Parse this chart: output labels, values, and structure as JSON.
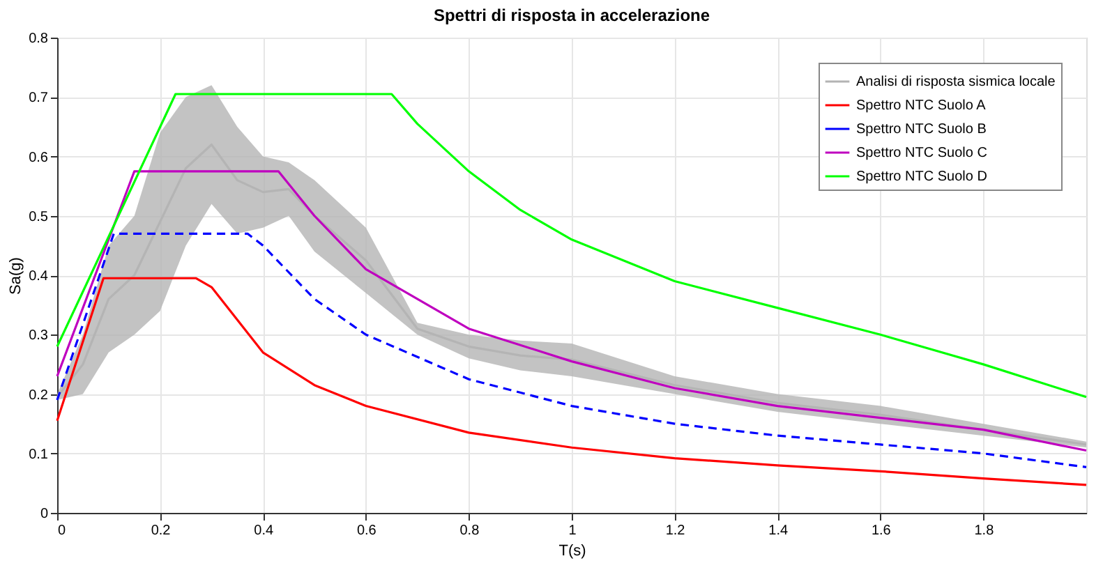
{
  "chart_data": {
    "type": "line",
    "title": "Spettri di risposta in accelerazione",
    "xlabel": "T(s)",
    "ylabel": "Sa(g)",
    "xlim": [
      0,
      2
    ],
    "xticks": [
      0,
      0.2,
      0.4,
      0.6,
      0.8,
      1,
      1.2,
      1.4,
      1.6,
      1.8
    ],
    "ylim": [
      0,
      0.8
    ],
    "yticks": [
      0,
      0.1,
      0.2,
      0.3,
      0.4,
      0.5,
      0.6,
      0.7,
      0.8
    ],
    "grid": true,
    "legend": "top right",
    "marker": "none",
    "series": [
      {
        "name": "Analisi di risposta sismica locale",
        "color": "#b4b4b4",
        "line_style": "solid",
        "x": [
          0,
          0.05,
          0.1,
          0.15,
          0.2,
          0.25,
          0.3,
          0.35,
          0.4,
          0.45,
          0.5,
          0.6,
          0.7,
          0.8,
          0.9,
          1.0,
          1.2,
          1.4,
          1.6,
          1.8,
          2.0
        ],
        "values": [
          0.195,
          0.25,
          0.36,
          0.4,
          0.49,
          0.58,
          0.62,
          0.56,
          0.54,
          0.545,
          0.5,
          0.425,
          0.31,
          0.28,
          0.265,
          0.258,
          0.215,
          0.185,
          0.165,
          0.14,
          0.115
        ],
        "lower": [
          0.19,
          0.2,
          0.27,
          0.3,
          0.34,
          0.45,
          0.52,
          0.47,
          0.48,
          0.5,
          0.44,
          0.37,
          0.3,
          0.26,
          0.24,
          0.23,
          0.2,
          0.17,
          0.15,
          0.13,
          0.11
        ],
        "upper": [
          0.2,
          0.3,
          0.45,
          0.5,
          0.64,
          0.7,
          0.72,
          0.65,
          0.6,
          0.59,
          0.56,
          0.48,
          0.32,
          0.3,
          0.29,
          0.285,
          0.23,
          0.2,
          0.18,
          0.15,
          0.12
        ]
      },
      {
        "name": "Spettro NTC Suolo A",
        "color": "#ff0000",
        "line_style": "solid",
        "x": [
          0,
          0.09,
          0.27,
          0.3,
          0.4,
          0.5,
          0.6,
          0.8,
          1.0,
          1.2,
          1.4,
          1.6,
          1.8,
          2.0
        ],
        "values": [
          0.155,
          0.395,
          0.395,
          0.38,
          0.27,
          0.215,
          0.18,
          0.135,
          0.11,
          0.092,
          0.08,
          0.07,
          0.058,
          0.047
        ]
      },
      {
        "name": "Spettro NTC Suolo B",
        "color": "#0000ff",
        "line_style": "dashed",
        "x": [
          0,
          0.11,
          0.37,
          0.4,
          0.5,
          0.6,
          0.8,
          1.0,
          1.2,
          1.4,
          1.6,
          1.8,
          2.0
        ],
        "values": [
          0.19,
          0.47,
          0.47,
          0.45,
          0.36,
          0.3,
          0.225,
          0.18,
          0.15,
          0.13,
          0.115,
          0.1,
          0.077
        ]
      },
      {
        "name": "Spettro NTC Suolo C",
        "color": "#bf00bf",
        "line_style": "solid",
        "x": [
          0,
          0.15,
          0.43,
          0.5,
          0.6,
          0.8,
          1.0,
          1.2,
          1.4,
          1.6,
          1.8,
          2.0
        ],
        "values": [
          0.23,
          0.575,
          0.575,
          0.5,
          0.41,
          0.31,
          0.255,
          0.21,
          0.18,
          0.16,
          0.14,
          0.105
        ]
      },
      {
        "name": "Spettro NTC Suolo D",
        "color": "#00ff00",
        "line_style": "solid",
        "x": [
          0,
          0.23,
          0.65,
          0.7,
          0.8,
          0.9,
          1.0,
          1.2,
          1.4,
          1.6,
          1.8,
          2.0
        ],
        "values": [
          0.28,
          0.705,
          0.705,
          0.655,
          0.575,
          0.51,
          0.46,
          0.39,
          0.345,
          0.3,
          0.25,
          0.195
        ]
      }
    ]
  }
}
